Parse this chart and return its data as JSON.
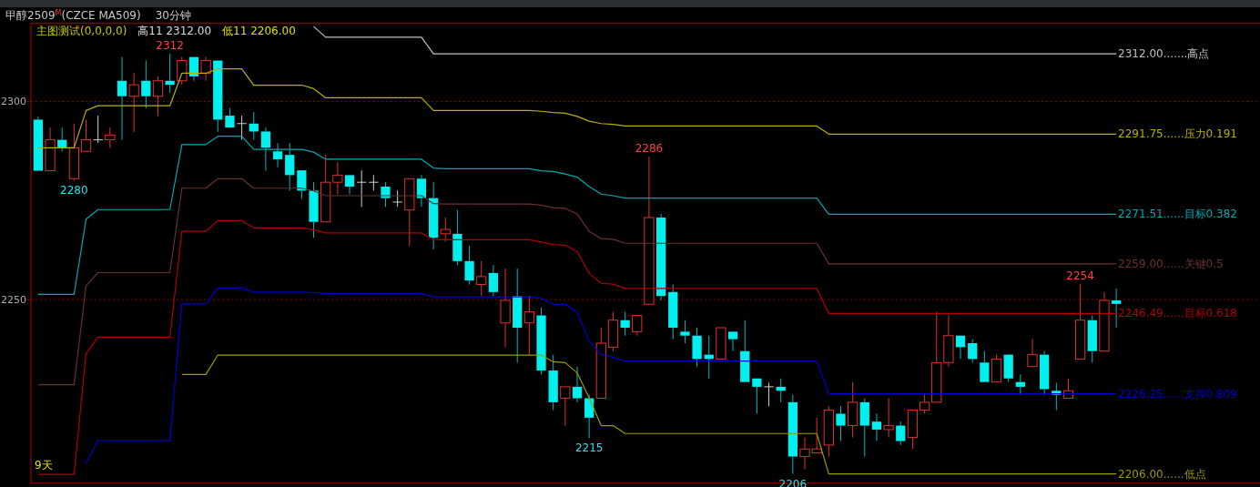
{
  "chart_data": {
    "type": "candlestick",
    "title": "甲醇2509$^{M}$(CZCE MA509)",
    "subtitle": "30分钟",
    "categories": [
      null,
      null,
      null,
      null,
      null,
      null,
      null,
      null,
      null,
      null,
      null,
      null,
      null,
      null,
      null,
      null,
      null,
      null,
      null,
      null,
      null,
      null,
      null,
      null,
      null,
      null,
      null,
      null,
      null,
      null,
      null,
      null,
      null,
      null,
      null,
      null,
      null,
      null,
      null,
      null,
      null,
      null,
      null,
      null,
      null,
      null,
      null,
      null,
      null,
      null,
      null,
      null,
      null,
      null,
      null,
      null,
      null,
      null,
      null,
      null,
      null,
      null,
      null,
      null,
      null,
      null,
      null,
      null,
      null,
      null,
      null,
      null,
      null,
      null,
      null,
      null,
      null,
      null,
      null,
      null,
      null,
      null,
      null,
      null,
      null,
      null,
      null,
      null,
      null,
      null,
      null
    ],
    "ohlc": [
      [
        2295.4,
        2296.2,
        2282.5,
        2282.5
      ],
      [
        2282.5,
        2293.4,
        2282.5,
        2290.3
      ],
      [
        2290.3,
        2293.4,
        2287.4,
        2288.3
      ],
      [
        2280.5,
        2294.4,
        2280,
        2288.3
      ],
      [
        2287.4,
        2295.4,
        2287.4,
        2290.3
      ],
      [
        2290.3,
        2296.4,
        2289.5,
        2290.3
      ],
      [
        2290.3,
        2293.4,
        2288.3,
        2291.5
      ],
      [
        2305.2,
        2311.2,
        2290.3,
        2301.3
      ],
      [
        2301.3,
        2307.1,
        2292.3,
        2304.2
      ],
      [
        2305.2,
        2310.3,
        2298.3,
        2301.3
      ],
      [
        2301.3,
        2306.3,
        2296.3,
        2305.2
      ],
      [
        2305.2,
        2312,
        2302.2,
        2304.2
      ],
      [
        2305.2,
        2311.2,
        2304.2,
        2310.3
      ],
      [
        2311.2,
        2311.2,
        2305.2,
        2306.3
      ],
      [
        2307.1,
        2311.2,
        2305.2,
        2310.3
      ],
      [
        2310.3,
        2310.3,
        2292.3,
        2295.4
      ],
      [
        2296.4,
        2298.3,
        2293.4,
        2293.4
      ],
      [
        2294.4,
        2296.4,
        2290.3,
        2294.4
      ],
      [
        2294.4,
        2297.3,
        2290.3,
        2292.4
      ],
      [
        2292.4,
        2293.4,
        2282.5,
        2288.3
      ],
      [
        2287.4,
        2289.5,
        2283.4,
        2285.4
      ],
      [
        2286.5,
        2289.5,
        2277.5,
        2281.4
      ],
      [
        2282.6,
        2282.6,
        2275.4,
        2277.5
      ],
      [
        2277.5,
        2279.6,
        2265.6,
        2269.6
      ],
      [
        2269.6,
        2286.5,
        2269.6,
        2279.6
      ],
      [
        2279.6,
        2284.6,
        2276.6,
        2281.4
      ],
      [
        2281.4,
        2281.4,
        2276.6,
        2278.5
      ],
      [
        2279.6,
        2282.6,
        2273.4,
        2279.6
      ],
      [
        2279.6,
        2281.4,
        2277.5,
        2279.6
      ],
      [
        2278.5,
        2279.6,
        2273.4,
        2275.6
      ],
      [
        2274.6,
        2277.5,
        2273.4,
        2274.6
      ],
      [
        2272.6,
        2280.5,
        2263.6,
        2280.5
      ],
      [
        2280.5,
        2281.4,
        2273.4,
        2275.6
      ],
      [
        2275.6,
        2279.6,
        2262.6,
        2265.6
      ],
      [
        2266.6,
        2270.7,
        2264.6,
        2267.7
      ],
      [
        2266.6,
        2272.6,
        2258.7,
        2259.7
      ],
      [
        2259.7,
        2263.6,
        2253.8,
        2254.8
      ],
      [
        2253.8,
        2259.7,
        2250.9,
        2255.8
      ],
      [
        2256.7,
        2258.7,
        2250.9,
        2251.9
      ],
      [
        2244.1,
        2257.8,
        2238.0,
        2249.8
      ],
      [
        2250.9,
        2257.8,
        2234.1,
        2242.9
      ],
      [
        2244.1,
        2250.9,
        2236.1,
        2246.9
      ],
      [
        2246.0,
        2248.0,
        2231.1,
        2232.1
      ],
      [
        2232.1,
        2236.1,
        2222.1,
        2224.1
      ],
      [
        2225.1,
        2228.0,
        2218.2,
        2228.0
      ],
      [
        2228.0,
        2233.1,
        2224.1,
        2225.1
      ],
      [
        2225.1,
        2226.0,
        2215,
        2220.2
      ],
      [
        2225.1,
        2242.9,
        2225.1,
        2239.0
      ],
      [
        2238.0,
        2246.9,
        2237.0,
        2244.8
      ],
      [
        2244.8,
        2246.9,
        2240.9,
        2242.9
      ],
      [
        2241.9,
        2246.0,
        2240.9,
        2246.0
      ],
      [
        2248.8,
        2286,
        2248.8,
        2270.7
      ],
      [
        2270.7,
        2271.6,
        2249.8,
        2250.9
      ],
      [
        2251.9,
        2253.8,
        2240.0,
        2242.9
      ],
      [
        2241.9,
        2244.8,
        2239.0,
        2240.9
      ],
      [
        2240.9,
        2242.9,
        2233.1,
        2235.0
      ],
      [
        2236.1,
        2240.9,
        2230.1,
        2235.0
      ],
      [
        2235.0,
        2242.9,
        2235.0,
        2242.9
      ],
      [
        2241.9,
        2241.9,
        2237.0,
        2240.0
      ],
      [
        2237.0,
        2244.8,
        2229.2,
        2229.2
      ],
      [
        2230.1,
        2230.1,
        2221.2,
        2228.0
      ],
      [
        2228.0,
        2229.0,
        2223.1,
        2228.0
      ],
      [
        2228.0,
        2230.1,
        2224.1,
        2227.0
      ],
      [
        2224.1,
        2226.0,
        2206,
        2210.4
      ],
      [
        2210.4,
        2215.2,
        2207.2,
        2212.3
      ],
      [
        2211.3,
        2220.2,
        2211.3,
        2212.3
      ],
      [
        2213.3,
        2223.1,
        2210.4,
        2222.1
      ],
      [
        2221.2,
        2223.1,
        2214.3,
        2218.2
      ],
      [
        2218.2,
        2229.2,
        2215.2,
        2224.1
      ],
      [
        2224.1,
        2225.1,
        2210.4,
        2218.2
      ],
      [
        2219.2,
        2221.2,
        2214.3,
        2217.2
      ],
      [
        2217.2,
        2225.1,
        2215.2,
        2218.2
      ],
      [
        2218.2,
        2219.2,
        2213.3,
        2214.3
      ],
      [
        2215.2,
        2222.1,
        2212.3,
        2222.1
      ],
      [
        2222.1,
        2226.0,
        2221.2,
        2224.1
      ],
      [
        2224.1,
        2246.9,
        2224.1,
        2234.1
      ],
      [
        2234.1,
        2246.0,
        2233.1,
        2240.9
      ],
      [
        2240.9,
        2240.9,
        2235.0,
        2238.0
      ],
      [
        2239.0,
        2240.0,
        2234.1,
        2235.0
      ],
      [
        2234.1,
        2237.0,
        2229.2,
        2229.2
      ],
      [
        2229.2,
        2236.1,
        2229.2,
        2235.0
      ],
      [
        2236.1,
        2236.1,
        2229.2,
        2230.1
      ],
      [
        2229.2,
        2231.1,
        2226.0,
        2228.0
      ],
      [
        2233.1,
        2240.0,
        2233.1,
        2236.1
      ],
      [
        2236.1,
        2237.0,
        2226.0,
        2227.4
      ],
      [
        2227.0,
        2229.0,
        2222.1,
        2226.0
      ],
      [
        2225.1,
        2230.0,
        2225.1,
        2227.0
      ],
      [
        2235.0,
        2254,
        2235.0,
        2244.8
      ],
      [
        2244.8,
        2246.0,
        2234.1,
        2237.0
      ],
      [
        2237.0,
        2251.9,
        2237.0,
        2249.8
      ],
      [
        2249.8,
        2252.8,
        2242.9,
        2248.9
      ]
    ],
    "series": [
      {
        "type": "line",
        "name": "2312.00.......高点",
        "color": "#c0c0c0",
        "values": [
          null,
          null,
          null,
          null,
          null,
          null,
          null,
          null,
          null,
          null,
          null,
          null,
          null,
          null,
          null,
          null,
          null,
          null,
          null,
          null,
          null,
          null,
          null,
          2318.9,
          2316.2,
          2316.2,
          2316.2,
          2316.2,
          2316.2,
          2316.2,
          2316.2,
          2316.2,
          2316.2,
          2312.0,
          2312.0,
          2312.0,
          2312.0,
          2312.0,
          2312.0,
          2312.0,
          2312.0,
          2312.0,
          2312.0,
          2312.0,
          2312.0,
          2312.0,
          2312.0,
          2312.0,
          2312.0,
          2312.0,
          2312.0,
          2312.0,
          2312.0,
          2312.0,
          2312.0,
          2312.0,
          2312.0,
          2312.0,
          2312.0,
          2312.0,
          2312.0,
          2312.0,
          2312.0,
          2312.0,
          2312.0,
          2312.0,
          2312.0,
          2312.0,
          2312.0,
          2312.0,
          2312.0,
          2312.0,
          2312.0,
          2312.0,
          2312.0,
          2312.0,
          2312.0,
          2312.0,
          2312.0,
          2312.0,
          2312.0,
          2312.0,
          2312.0,
          2312.0,
          2312.0,
          2312.0,
          2312.0,
          2312.0,
          2312.0,
          2312.0,
          2312.0
        ]
      },
      {
        "type": "line",
        "name": "2291.75......压力0.191",
        "color": "#b8b000",
        "values": [
          2288.3,
          2288.3,
          2288.3,
          2288.3,
          2297.7,
          2298.9,
          2298.9,
          2298.9,
          2298.9,
          2298.9,
          2298.9,
          2298.9,
          2307.1,
          2307.1,
          2307.1,
          2308.2,
          2308.2,
          2308.2,
          2304.1,
          2304.1,
          2304.1,
          2304.1,
          2304.1,
          2303.2,
          2300.9,
          2300.9,
          2300.9,
          2300.9,
          2300.9,
          2300.9,
          2300.9,
          2300.9,
          2300.9,
          2297.7,
          2297.7,
          2297.7,
          2297.7,
          2297.7,
          2297.7,
          2297.7,
          2297.7,
          2297.7,
          2297.5,
          2297.2,
          2297.0,
          2296.2,
          2295.0,
          2294.4,
          2294.2,
          2293.8,
          2293.8,
          2293.8,
          2293.8,
          2293.8,
          2293.8,
          2293.8,
          2293.8,
          2293.8,
          2293.8,
          2293.8,
          2293.8,
          2293.8,
          2293.8,
          2293.8,
          2293.8,
          2293.8,
          2291.75,
          2291.75,
          2291.75,
          2291.75,
          2291.75,
          2291.75,
          2291.75,
          2291.75,
          2291.75,
          2291.75,
          2291.75,
          2291.75,
          2291.75,
          2291.75,
          2291.75,
          2291.75,
          2291.75,
          2291.75,
          2291.75,
          2291.75,
          2291.75,
          2291.75,
          2291.75,
          2291.75,
          2291.75
        ]
      },
      {
        "type": "line",
        "name": "2271.51......目标0.382",
        "color": "#00a8b0",
        "values": [
          2251.3,
          2251.3,
          2251.3,
          2251.3,
          2270.3,
          2272.7,
          2272.7,
          2272.7,
          2272.7,
          2272.7,
          2272.7,
          2272.7,
          2289.1,
          2289.1,
          2289.1,
          2291.2,
          2291.2,
          2291.2,
          2287.9,
          2287.9,
          2287.9,
          2287.9,
          2287.9,
          2287.2,
          2285.4,
          2285.4,
          2285.4,
          2285.4,
          2285.4,
          2285.4,
          2285.4,
          2285.4,
          2285.4,
          2283.2,
          2283.0,
          2283.0,
          2283.0,
          2283.0,
          2283.0,
          2283.0,
          2283.0,
          2283.0,
          2282.5,
          2282.3,
          2281.7,
          2280.9,
          2278.5,
          2276.6,
          2276.2,
          2275.6,
          2275.6,
          2275.6,
          2275.6,
          2275.6,
          2275.6,
          2275.6,
          2275.6,
          2275.6,
          2275.6,
          2275.6,
          2275.6,
          2275.6,
          2275.6,
          2275.6,
          2275.6,
          2275.6,
          2271.51,
          2271.51,
          2271.51,
          2271.51,
          2271.51,
          2271.51,
          2271.51,
          2271.51,
          2271.51,
          2271.51,
          2271.51,
          2271.51,
          2271.51,
          2271.51,
          2271.51,
          2271.51,
          2271.51,
          2271.51,
          2271.51,
          2271.51,
          2271.51,
          2271.51,
          2271.51,
          2271.51,
          2271.51
        ]
      },
      {
        "type": "line",
        "name": "2259.00......关键0.5",
        "color": "#6a3030",
        "values": [
          2228.5,
          2228.5,
          2228.5,
          2228.5,
          2253.5,
          2256.8,
          2256.8,
          2256.8,
          2256.8,
          2256.8,
          2256.8,
          2256.8,
          2278.1,
          2278.1,
          2278.1,
          2280.5,
          2280.5,
          2280.5,
          2278.1,
          2278.1,
          2278.1,
          2278.1,
          2278.1,
          2277.4,
          2276.2,
          2276.2,
          2276.2,
          2276.2,
          2276.2,
          2276.2,
          2276.2,
          2276.2,
          2276.2,
          2274.2,
          2274.1,
          2274.1,
          2274.1,
          2274.1,
          2274.1,
          2274.1,
          2274.1,
          2274.1,
          2273.8,
          2273.2,
          2273.0,
          2271.6,
          2267.2,
          2265.4,
          2265.2,
          2264.2,
          2264.2,
          2264.2,
          2264.2,
          2264.2,
          2264.2,
          2264.2,
          2264.2,
          2264.2,
          2264.2,
          2264.2,
          2264.2,
          2264.2,
          2264.2,
          2264.2,
          2264.2,
          2264.2,
          2259.0,
          2259.0,
          2259.0,
          2259.0,
          2259.0,
          2259.0,
          2259.0,
          2259.0,
          2259.0,
          2259.0,
          2259.0,
          2259.0,
          2259.0,
          2259.0,
          2259.0,
          2259.0,
          2259.0,
          2259.0,
          2259.0,
          2259.0,
          2259.0,
          2259.0,
          2259.0,
          2259.0,
          2259.0
        ]
      },
      {
        "type": "line",
        "name": "2246.49......目标0.618",
        "color": "#b00000",
        "values": [
          2205.9,
          2205.9,
          2205.9,
          2205.9,
          2236.4,
          2240.5,
          2240.5,
          2240.5,
          2240.5,
          2240.5,
          2240.5,
          2240.5,
          2267.2,
          2267.2,
          2267.2,
          2269.9,
          2269.9,
          2269.9,
          2268.1,
          2268.1,
          2268.1,
          2268.1,
          2268.1,
          2267.6,
          2266.8,
          2266.8,
          2266.8,
          2266.8,
          2266.8,
          2266.8,
          2266.8,
          2266.8,
          2266.8,
          2265.2,
          2265.1,
          2265.1,
          2265.1,
          2265.1,
          2265.1,
          2265.1,
          2265.1,
          2265.1,
          2264.5,
          2263.9,
          2263.7,
          2262.1,
          2256.6,
          2254.1,
          2253.9,
          2252.8,
          2252.8,
          2252.8,
          2252.8,
          2252.8,
          2252.8,
          2252.8,
          2252.8,
          2252.8,
          2252.8,
          2252.8,
          2252.8,
          2252.8,
          2252.8,
          2252.8,
          2252.8,
          2252.8,
          2246.49,
          2246.49,
          2246.49,
          2246.49,
          2246.49,
          2246.49,
          2246.49,
          2246.49,
          2246.49,
          2246.49,
          2246.49,
          2246.49,
          2246.49,
          2246.49,
          2246.49,
          2246.49,
          2246.49,
          2246.49,
          2246.49,
          2246.49,
          2246.49,
          2246.49,
          2246.49,
          2246.49,
          2246.49
        ]
      },
      {
        "type": "line",
        "name": "2226.25......支撑0.809",
        "color": "#0000c8",
        "values": [
          null,
          null,
          null,
          null,
          2208.8,
          2214.4,
          2214.4,
          2214.4,
          2214.4,
          2214.4,
          2214.4,
          2214.4,
          2248.9,
          2248.9,
          2248.9,
          2252.9,
          2252.9,
          2252.9,
          2251.9,
          2251.9,
          2251.9,
          2251.9,
          2251.9,
          2251.8,
          2251.5,
          2251.5,
          2251.5,
          2251.5,
          2251.5,
          2251.5,
          2251.5,
          2251.5,
          2251.5,
          2250.7,
          2250.7,
          2250.7,
          2250.7,
          2250.7,
          2250.7,
          2250.7,
          2250.7,
          2250.7,
          2250.3,
          2248.8,
          2248.8,
          2246.8,
          2239.4,
          2236.2,
          2235.4,
          2234.5,
          2234.5,
          2234.5,
          2234.5,
          2234.5,
          2234.5,
          2234.5,
          2234.5,
          2234.5,
          2234.5,
          2234.5,
          2234.5,
          2234.5,
          2234.5,
          2234.5,
          2234.5,
          2234.5,
          2226.25,
          2226.25,
          2226.25,
          2226.25,
          2226.25,
          2226.25,
          2226.25,
          2226.25,
          2226.25,
          2226.25,
          2226.25,
          2226.25,
          2226.25,
          2226.25,
          2226.25,
          2226.25,
          2226.25,
          2226.25,
          2226.25,
          2226.25,
          2226.25,
          2226.25,
          2226.25,
          2226.25,
          2226.25
        ]
      },
      {
        "type": "line",
        "name": "2206.00......低点",
        "color": "#9a9a00",
        "values": [
          null,
          null,
          null,
          null,
          null,
          null,
          null,
          null,
          null,
          null,
          null,
          null,
          2231.1,
          2231.1,
          2231.1,
          2236.0,
          2236.0,
          2236.0,
          2236.0,
          2236.0,
          2236.0,
          2236.0,
          2236.0,
          2236.0,
          2236.0,
          2236.0,
          2236.0,
          2236.0,
          2236.0,
          2236.0,
          2236.0,
          2236.0,
          2236.0,
          2236.0,
          2236.0,
          2236.0,
          2236.0,
          2236.0,
          2236.0,
          2236.0,
          2236.0,
          2236.0,
          2236.0,
          2234.3,
          2234.1,
          2231.5,
          2225.2,
          2218.2,
          2218.2,
          2216.2,
          2216.2,
          2216.2,
          2216.2,
          2216.2,
          2216.2,
          2216.2,
          2216.2,
          2216.2,
          2216.2,
          2216.2,
          2216.2,
          2216.2,
          2216.2,
          2216.2,
          2216.2,
          2216.2,
          2206.0,
          2206.0,
          2206.0,
          2206.0,
          2206.0,
          2206.0,
          2206.0,
          2206.0,
          2206.0,
          2206.0,
          2206.0,
          2206.0,
          2206.0,
          2206.0,
          2206.0,
          2206.0,
          2206.0,
          2206.0,
          2206.0,
          2206.0,
          2206.0,
          2206.0,
          2206.0,
          2206.0,
          2206.0
        ]
      }
    ],
    "ylim": [
      2203.7,
      2319.7
    ],
    "yticks": [
      2300,
      2250
    ],
    "grid": "y",
    "legend": false,
    "annotations": [
      "主图测试(0,0,0,0)",
      "高11 2312.00",
      "低11 2206.00",
      "9天",
      {
        "text": "2312",
        "y": 2312
      },
      {
        "text": "2280",
        "y": 2280
      },
      {
        "text": "2286",
        "y": 2286
      },
      {
        "text": "2215",
        "y": 2215
      },
      {
        "text": "2206",
        "y": 2206
      },
      {
        "text": "2254",
        "y": 2254
      }
    ]
  }
}
